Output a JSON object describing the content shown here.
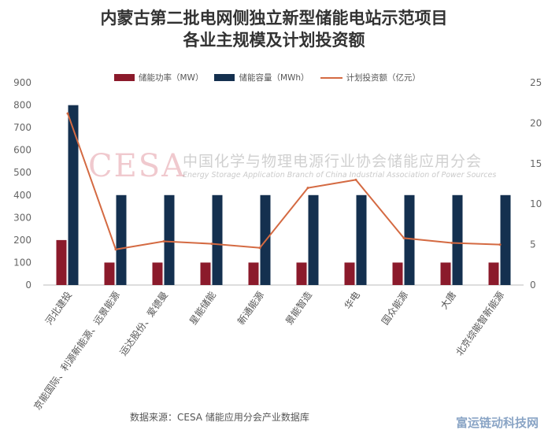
{
  "chart_data": {
    "type": "bar",
    "title_line1": "内蒙古第二批电网侧独立新型储能电站示范项目",
    "title_line2": "各业主规模及计划投资额",
    "categories": [
      "河北建投",
      "京能国际、利源新能源、远景能源",
      "运达股份、爱德曼",
      "星能储能",
      "新通能源",
      "景能智造",
      "华电",
      "国众能源",
      "大唐",
      "北京综能智新能源"
    ],
    "series": [
      {
        "name": "储能功率（MW）",
        "axis": "left",
        "kind": "bar",
        "color": "#8b1a2b",
        "values": [
          200,
          100,
          100,
          100,
          100,
          100,
          100,
          100,
          100,
          100
        ]
      },
      {
        "name": "储能容量（MWh）",
        "axis": "left",
        "kind": "bar",
        "color": "#14304f",
        "values": [
          800,
          400,
          400,
          400,
          400,
          400,
          400,
          400,
          400,
          400
        ]
      },
      {
        "name": "计划投资额（亿元）",
        "axis": "right",
        "kind": "line",
        "color": "#d46a42",
        "values": [
          21.2,
          4.4,
          5.4,
          5.1,
          4.6,
          12.0,
          13.0,
          5.8,
          5.2,
          5.0
        ]
      }
    ],
    "y_left": {
      "min": 0,
      "max": 900,
      "ticks": [
        0,
        100,
        200,
        300,
        400,
        500,
        600,
        700,
        800,
        900
      ]
    },
    "y_right": {
      "min": 0,
      "max": 25,
      "ticks": [
        0,
        5,
        10,
        15,
        20,
        25
      ]
    },
    "grid": false,
    "legend_position": "top"
  },
  "watermark": {
    "logo": "CESA",
    "cn": "中国化学与物理电源行业协会储能应用分会",
    "en": "Energy Storage Application Branch of China Industrial Association of Power Sources"
  },
  "source": "数据来源：CESA 储能应用分会产业数据库",
  "corner_mark": "富运链动科技网"
}
